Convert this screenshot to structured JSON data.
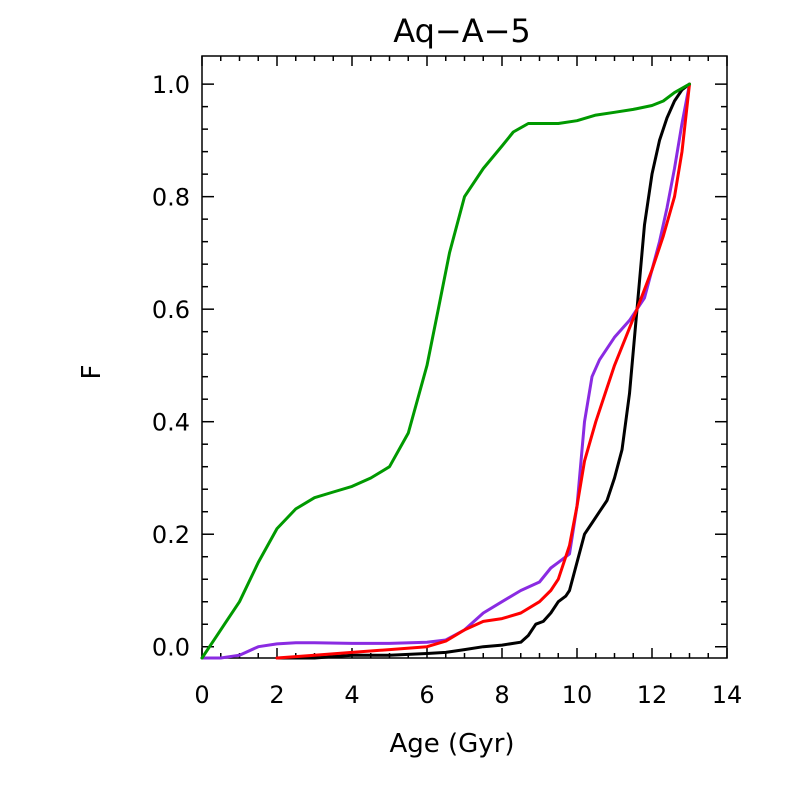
{
  "chart_data": {
    "type": "line",
    "title": "Aq−A−5",
    "xlabel": "Age (Gyr)",
    "ylabel": "F",
    "xlim": [
      0,
      14
    ],
    "ylim": [
      -0.02,
      1.05
    ],
    "xticks": [
      0,
      2,
      4,
      6,
      8,
      10,
      12,
      14
    ],
    "xtick_labels": [
      "0",
      "2",
      "4",
      "6",
      "8",
      "10",
      "12",
      "14"
    ],
    "yticks": [
      0.0,
      0.2,
      0.4,
      0.6,
      0.8,
      1.0
    ],
    "ytick_labels": [
      "0.0",
      "0.2",
      "0.4",
      "0.6",
      "0.8",
      "1.0"
    ],
    "grid": false,
    "series": [
      {
        "name": "black",
        "color": "#000000",
        "x": [
          2.0,
          3.0,
          4.0,
          5.0,
          6.0,
          6.5,
          7.0,
          7.5,
          8.0,
          8.5,
          8.7,
          8.9,
          9.1,
          9.3,
          9.5,
          9.7,
          9.8,
          10.0,
          10.2,
          10.4,
          10.6,
          10.8,
          11.0,
          11.2,
          11.4,
          11.6,
          11.8,
          12.0,
          12.2,
          12.4,
          12.6,
          12.8,
          13.0
        ],
        "y": [
          -0.02,
          -0.02,
          -0.015,
          -0.015,
          -0.012,
          -0.01,
          -0.005,
          0.0,
          0.003,
          0.008,
          0.02,
          0.04,
          0.045,
          0.06,
          0.08,
          0.09,
          0.1,
          0.15,
          0.2,
          0.22,
          0.24,
          0.26,
          0.3,
          0.35,
          0.45,
          0.6,
          0.75,
          0.84,
          0.9,
          0.94,
          0.97,
          0.99,
          1.0
        ]
      },
      {
        "name": "purple",
        "color": "#8a2be2",
        "x": [
          0.0,
          0.5,
          1.0,
          1.5,
          2.0,
          2.5,
          3.0,
          4.0,
          5.0,
          6.0,
          6.5,
          7.0,
          7.5,
          8.0,
          8.5,
          9.0,
          9.3,
          9.5,
          9.8,
          10.0,
          10.2,
          10.4,
          10.6,
          10.8,
          11.0,
          11.4,
          11.8,
          12.0,
          12.2,
          12.4,
          12.6,
          12.8,
          13.0
        ],
        "y": [
          -0.02,
          -0.02,
          -0.015,
          0.0,
          0.005,
          0.007,
          0.007,
          0.006,
          0.006,
          0.008,
          0.012,
          0.03,
          0.06,
          0.08,
          0.1,
          0.115,
          0.14,
          0.15,
          0.165,
          0.25,
          0.4,
          0.48,
          0.51,
          0.53,
          0.55,
          0.58,
          0.62,
          0.67,
          0.72,
          0.78,
          0.85,
          0.93,
          1.0
        ]
      },
      {
        "name": "red",
        "color": "#ff0000",
        "x": [
          2.0,
          3.0,
          4.0,
          5.0,
          6.0,
          6.5,
          7.0,
          7.5,
          8.0,
          8.5,
          9.0,
          9.3,
          9.5,
          9.8,
          10.0,
          10.2,
          10.5,
          10.8,
          11.0,
          11.3,
          11.6,
          12.0,
          12.3,
          12.6,
          12.8,
          13.0
        ],
        "y": [
          -0.02,
          -0.015,
          -0.01,
          -0.005,
          0.0,
          0.01,
          0.03,
          0.045,
          0.05,
          0.06,
          0.08,
          0.1,
          0.12,
          0.18,
          0.25,
          0.33,
          0.4,
          0.46,
          0.5,
          0.55,
          0.6,
          0.67,
          0.73,
          0.8,
          0.88,
          1.0
        ]
      },
      {
        "name": "green",
        "color": "#009900",
        "x": [
          0.0,
          0.3,
          0.6,
          1.0,
          1.5,
          2.0,
          2.5,
          3.0,
          3.5,
          4.0,
          4.5,
          5.0,
          5.5,
          6.0,
          6.3,
          6.6,
          7.0,
          7.5,
          8.0,
          8.3,
          8.7,
          9.0,
          9.5,
          10.0,
          10.5,
          11.0,
          11.5,
          12.0,
          12.3,
          12.6,
          13.0
        ],
        "y": [
          -0.02,
          0.01,
          0.04,
          0.08,
          0.15,
          0.21,
          0.245,
          0.265,
          0.275,
          0.285,
          0.3,
          0.32,
          0.38,
          0.5,
          0.6,
          0.7,
          0.8,
          0.85,
          0.89,
          0.915,
          0.93,
          0.93,
          0.93,
          0.935,
          0.945,
          0.95,
          0.955,
          0.962,
          0.97,
          0.985,
          1.0
        ]
      }
    ]
  }
}
